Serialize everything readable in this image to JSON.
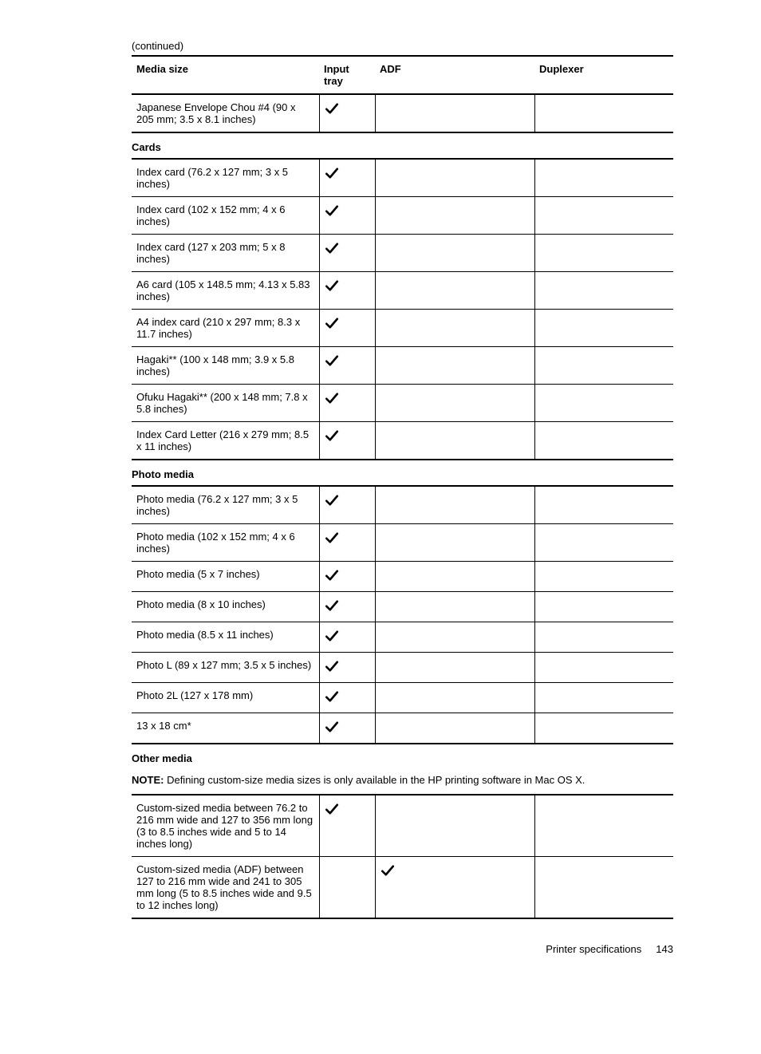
{
  "continued_label": "(continued)",
  "headers": {
    "media_size": "Media size",
    "input_tray": "Input tray",
    "adf": "ADF",
    "duplexer": "Duplexer"
  },
  "envelopes_cont": [
    {
      "label": "Japanese Envelope Chou #4 (90 x 205 mm; 3.5 x 8.1 inches)",
      "input": true,
      "adf": false,
      "dup": false
    }
  ],
  "cards_title": "Cards",
  "cards": [
    {
      "label": "Index card (76.2 x 127 mm; 3 x 5 inches)",
      "input": true,
      "adf": false,
      "dup": false
    },
    {
      "label": "Index card (102 x 152 mm; 4 x 6 inches)",
      "input": true,
      "adf": false,
      "dup": false
    },
    {
      "label": "Index card (127 x 203 mm; 5 x 8 inches)",
      "input": true,
      "adf": false,
      "dup": false
    },
    {
      "label": "A6 card (105 x 148.5 mm; 4.13 x 5.83 inches)",
      "input": true,
      "adf": false,
      "dup": false
    },
    {
      "label": "A4 index card (210 x 297 mm; 8.3 x 11.7 inches)",
      "input": true,
      "adf": false,
      "dup": false
    },
    {
      "label": "Hagaki** (100 x 148 mm; 3.9 x 5.8 inches)",
      "input": true,
      "adf": false,
      "dup": false
    },
    {
      "label": "Ofuku Hagaki** (200 x 148 mm; 7.8 x 5.8 inches)",
      "input": true,
      "adf": false,
      "dup": false
    },
    {
      "label": "Index Card Letter (216 x 279 mm; 8.5 x 11 inches)",
      "input": true,
      "adf": false,
      "dup": false
    }
  ],
  "photo_title": "Photo media",
  "photo": [
    {
      "label": "Photo media (76.2 x 127 mm; 3 x 5 inches)",
      "input": true,
      "adf": false,
      "dup": false
    },
    {
      "label": "Photo media (102 x 152 mm; 4 x 6 inches)",
      "input": true,
      "adf": false,
      "dup": false
    },
    {
      "label": "Photo media (5 x 7 inches)",
      "input": true,
      "adf": false,
      "dup": false
    },
    {
      "label": "Photo media (8 x 10 inches)",
      "input": true,
      "adf": false,
      "dup": false
    },
    {
      "label": "Photo media (8.5 x 11 inches)",
      "input": true,
      "adf": false,
      "dup": false
    },
    {
      "label": "Photo L (89 x 127 mm; 3.5 x 5 inches)",
      "input": true,
      "adf": false,
      "dup": false
    },
    {
      "label": "Photo 2L (127 x 178 mm)",
      "input": true,
      "adf": false,
      "dup": false
    },
    {
      "label": "13 x 18 cm*",
      "input": true,
      "adf": false,
      "dup": false
    }
  ],
  "other_title": "Other media",
  "note_label": "NOTE:",
  "note_text": "Defining custom-size media sizes is only available in the HP printing software in Mac OS X.",
  "other": [
    {
      "label": "Custom-sized media between 76.2 to 216 mm wide and 127 to 356 mm long (3 to 8.5 inches wide and 5 to 14 inches long)",
      "input": true,
      "adf": false,
      "dup": false
    },
    {
      "label": "Custom-sized media (ADF) between 127 to 216 mm wide and 241 to 305 mm long (5 to 8.5 inches wide and 9.5 to 12 inches long)",
      "input": false,
      "adf": true,
      "dup": false
    }
  ],
  "footer_text": "Printer specifications",
  "page_number": "143",
  "checkmark_color": "#000000"
}
